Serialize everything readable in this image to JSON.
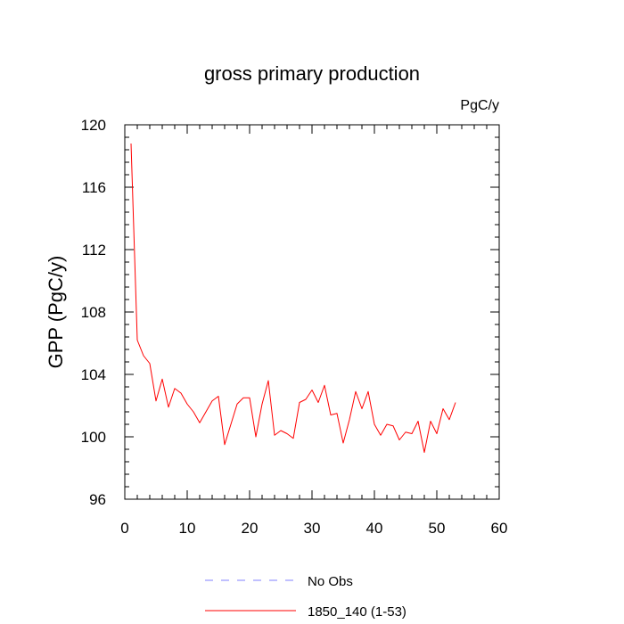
{
  "chart_data": {
    "type": "line",
    "title": "gross primary production",
    "units_label": "PgC/y",
    "ylabel": "GPP  (PgC/y)",
    "xlabel": "",
    "xlim": [
      0,
      60
    ],
    "ylim": [
      96,
      120
    ],
    "x_ticks": [
      "0",
      "10",
      "20",
      "30",
      "40",
      "50",
      "60"
    ],
    "y_ticks": [
      "96",
      "100",
      "104",
      "108",
      "112",
      "116",
      "120"
    ],
    "series": [
      {
        "name": "1850_140 (1-53)",
        "color": "#ff0000",
        "style": "solid",
        "x": [
          1,
          2,
          3,
          4,
          5,
          6,
          7,
          8,
          9,
          10,
          11,
          12,
          13,
          14,
          15,
          16,
          17,
          18,
          19,
          20,
          21,
          22,
          23,
          24,
          25,
          26,
          27,
          28,
          29,
          30,
          31,
          32,
          33,
          34,
          35,
          36,
          37,
          38,
          39,
          40,
          41,
          42,
          43,
          44,
          45,
          46,
          47,
          48,
          49,
          50,
          51,
          52,
          53
        ],
        "values": [
          118.8,
          106.2,
          105.2,
          104.7,
          102.3,
          103.7,
          101.9,
          103.1,
          102.8,
          102.1,
          101.6,
          100.9,
          101.6,
          102.3,
          102.6,
          99.5,
          100.8,
          102.1,
          102.5,
          102.5,
          100.0,
          102.1,
          103.6,
          100.1,
          100.4,
          100.2,
          99.9,
          102.2,
          102.4,
          103.0,
          102.2,
          103.3,
          101.4,
          101.5,
          99.6,
          101.1,
          102.9,
          101.8,
          102.9,
          100.8,
          100.1,
          100.8,
          100.7,
          99.8,
          100.3,
          100.2,
          101.0,
          99.0,
          101.0,
          100.2,
          101.8,
          101.1,
          102.2
        ]
      }
    ],
    "legend": {
      "placement": "bottom",
      "entries": [
        {
          "label": "No Obs",
          "color": "#8080ff",
          "style": "dashed"
        },
        {
          "label": "1850_140 (1-53)",
          "color": "#ff0000",
          "style": "solid"
        }
      ]
    },
    "grid": false
  }
}
